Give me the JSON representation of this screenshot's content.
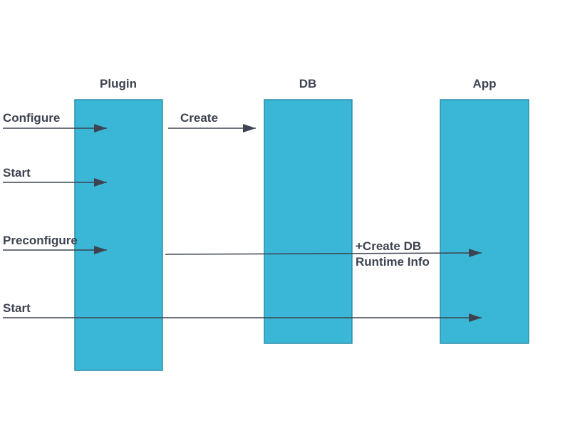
{
  "columns": [
    {
      "label": "Plugin"
    },
    {
      "label": "DB"
    },
    {
      "label": "App"
    }
  ],
  "messages": [
    {
      "label": "Configure"
    },
    {
      "label": "Create"
    },
    {
      "label": "Start"
    },
    {
      "label": "Preconfigure"
    },
    {
      "label": "+Create DB\nRuntime Info"
    },
    {
      "label": "Start"
    }
  ]
}
